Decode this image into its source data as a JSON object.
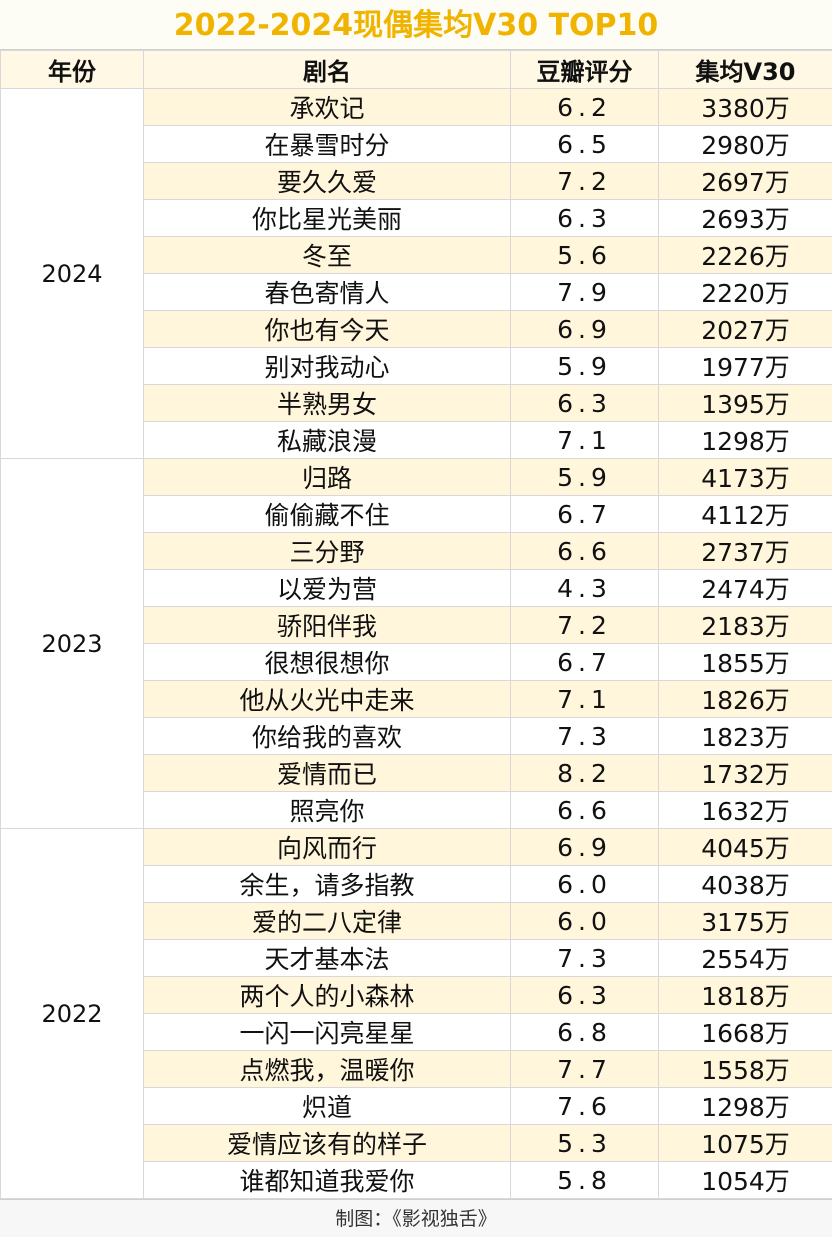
{
  "title": "2022-2024现偶集均V30 TOP10",
  "table": {
    "header": [
      "年份",
      "剧名",
      "豆瓣评分",
      "集均V30"
    ],
    "groups": [
      {
        "year": "2024",
        "rows": [
          [
            "承欢记",
            "6.2",
            "3380万"
          ],
          [
            "在暴雪时分",
            "6.5",
            "2980万"
          ],
          [
            "要久久爱",
            "7.2",
            "2697万"
          ],
          [
            "你比星光美丽",
            "6.3",
            "2693万"
          ],
          [
            "冬至",
            "5.6",
            "2226万"
          ],
          [
            "春色寄情人",
            "7.9",
            "2220万"
          ],
          [
            "你也有今天",
            "6.9",
            "2027万"
          ],
          [
            "别对我动心",
            "5.9",
            "1977万"
          ],
          [
            "半熟男女",
            "6.3",
            "1395万"
          ],
          [
            "私藏浪漫",
            "7.1",
            "1298万"
          ]
        ]
      },
      {
        "year": "2023",
        "rows": [
          [
            "归路",
            "5.9",
            "4173万"
          ],
          [
            "偷偷藏不住",
            "6.7",
            "4112万"
          ],
          [
            "三分野",
            "6.6",
            "2737万"
          ],
          [
            "以爱为营",
            "4.3",
            "2474万"
          ],
          [
            "骄阳伴我",
            "7.2",
            "2183万"
          ],
          [
            "很想很想你",
            "6.7",
            "1855万"
          ],
          [
            "他从火光中走来",
            "7.1",
            "1826万"
          ],
          [
            "你给我的喜欢",
            "7.3",
            "1823万"
          ],
          [
            "爱情而已",
            "8.2",
            "1732万"
          ],
          [
            "照亮你",
            "6.6",
            "1632万"
          ]
        ]
      },
      {
        "year": "2022",
        "rows": [
          [
            "向风而行",
            "6.9",
            "4045万"
          ],
          [
            "余生，请多指教",
            "6.0",
            "4038万"
          ],
          [
            "爱的二八定律",
            "6.0",
            "3175万"
          ],
          [
            "天才基本法",
            "7.3",
            "2554万"
          ],
          [
            "两个人的小森林",
            "6.3",
            "1818万"
          ],
          [
            "一闪一闪亮星星",
            "6.8",
            "1668万"
          ],
          [
            "点燃我，温暖你",
            "7.7",
            "1558万"
          ],
          [
            "炽道",
            "7.6",
            "1298万"
          ],
          [
            "爱情应该有的样子",
            "5.3",
            "1075万"
          ],
          [
            "谁都知道我爱你",
            "5.8",
            "1054万"
          ]
        ]
      }
    ]
  },
  "footer": "制图：《影视独舌》"
}
